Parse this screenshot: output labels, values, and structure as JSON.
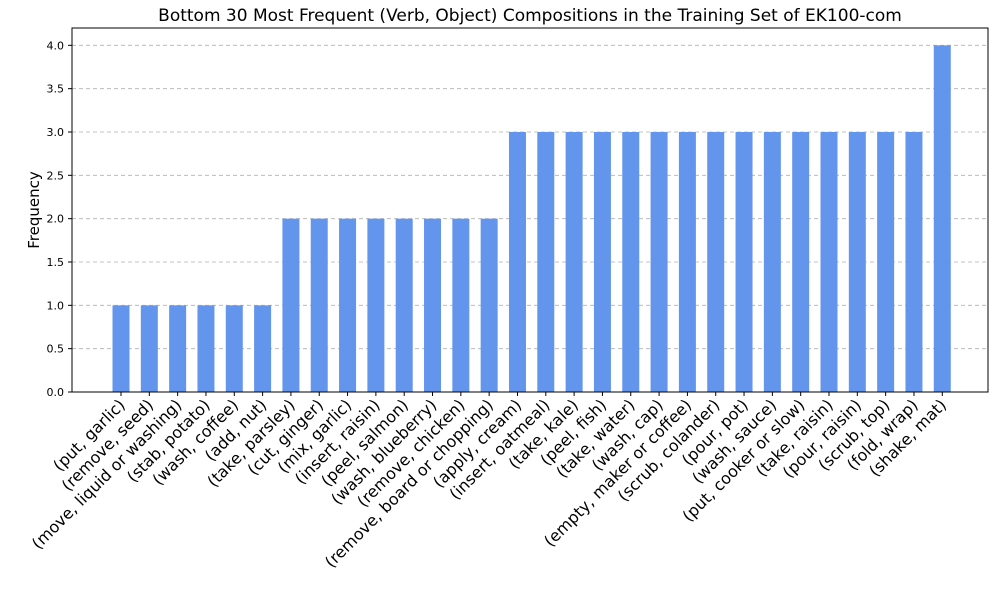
{
  "chart_data": {
    "type": "bar",
    "title": "Bottom 30 Most Frequent (Verb, Object) Compositions in the Training Set of EK100-com",
    "xlabel": "",
    "ylabel": "Frequency",
    "ylim": [
      0,
      4.2
    ],
    "yticks": [
      "0.0",
      "0.5",
      "1.0",
      "1.5",
      "2.0",
      "2.5",
      "3.0",
      "3.5",
      "4.0"
    ],
    "grid": "y-dashed",
    "bar_color": "#6495ED",
    "categories": [
      "(put, garlic)",
      "(remove, seed)",
      "(move, liquid or washing)",
      "(stab, potato)",
      "(wash, coffee)",
      "(add, nut)",
      "(take, parsley)",
      "(cut, ginger)",
      "(mix, garlic)",
      "(insert, raisin)",
      "(peel, salmon)",
      "(wash, blueberry)",
      "(remove, chicken)",
      "(remove, board or chopping)",
      "(apply, cream)",
      "(insert, oatmeal)",
      "(take, kale)",
      "(peel, fish)",
      "(take, water)",
      "(wash, cap)",
      "(empty, maker or coffee)",
      "(scrub, colander)",
      "(pour, pot)",
      "(wash, sauce)",
      "(put, cooker or slow)",
      "(take, raisin)",
      "(pour, raisin)",
      "(scrub, top)",
      "(fold, wrap)",
      "(shake, mat)"
    ],
    "values": [
      1,
      1,
      1,
      1,
      1,
      1,
      2,
      2,
      2,
      2,
      2,
      2,
      2,
      2,
      3,
      3,
      3,
      3,
      3,
      3,
      3,
      3,
      3,
      3,
      3,
      3,
      3,
      3,
      3,
      4
    ]
  }
}
